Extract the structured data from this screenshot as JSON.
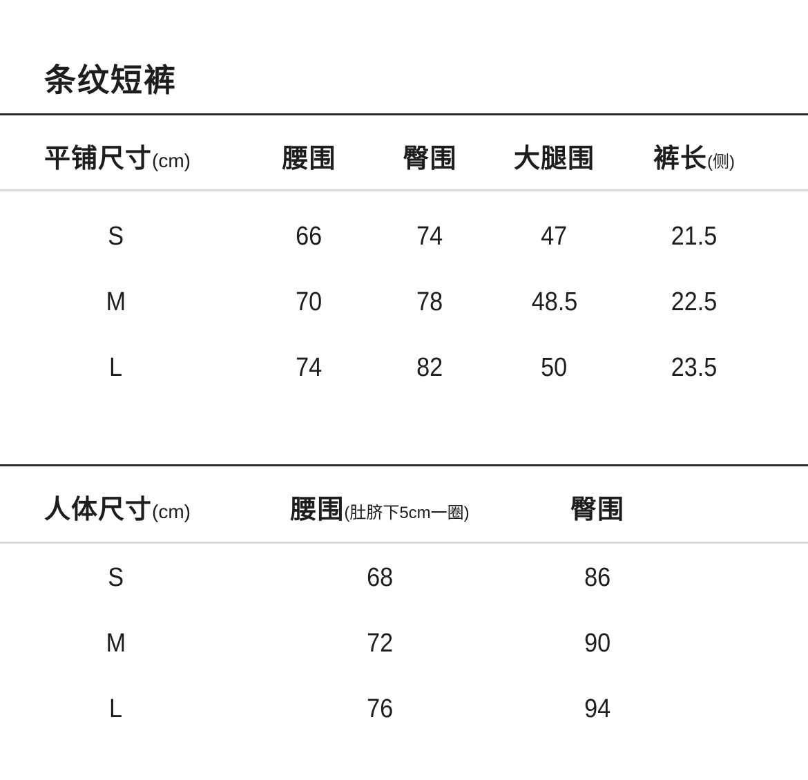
{
  "page": {
    "title": "条纹短裤"
  },
  "colors": {
    "background": "#ffffff",
    "text": "#1d1d1d",
    "rule_dark": "#2b2b2b",
    "rule_light": "#d8d8d8"
  },
  "flat_table": {
    "title": "平铺尺寸",
    "title_unit": "(cm)",
    "columns": {
      "waist": "腰围",
      "hip": "臀围",
      "thigh": "大腿围",
      "length": "裤长",
      "length_note": "(侧)"
    },
    "rows": [
      {
        "size": "S",
        "waist": "66",
        "hip": "74",
        "thigh": "47",
        "length": "21.5"
      },
      {
        "size": "M",
        "waist": "70",
        "hip": "78",
        "thigh": "48.5",
        "length": "22.5"
      },
      {
        "size": "L",
        "waist": "74",
        "hip": "82",
        "thigh": "50",
        "length": "23.5"
      }
    ]
  },
  "body_table": {
    "title": "人体尺寸",
    "title_unit": "(cm)",
    "columns": {
      "waist": "腰围",
      "waist_note": "(肚脐下5cm一圈)",
      "hip": "臀围"
    },
    "rows": [
      {
        "size": "S",
        "waist": "68",
        "hip": "86"
      },
      {
        "size": "M",
        "waist": "72",
        "hip": "90"
      },
      {
        "size": "L",
        "waist": "76",
        "hip": "94"
      }
    ]
  }
}
